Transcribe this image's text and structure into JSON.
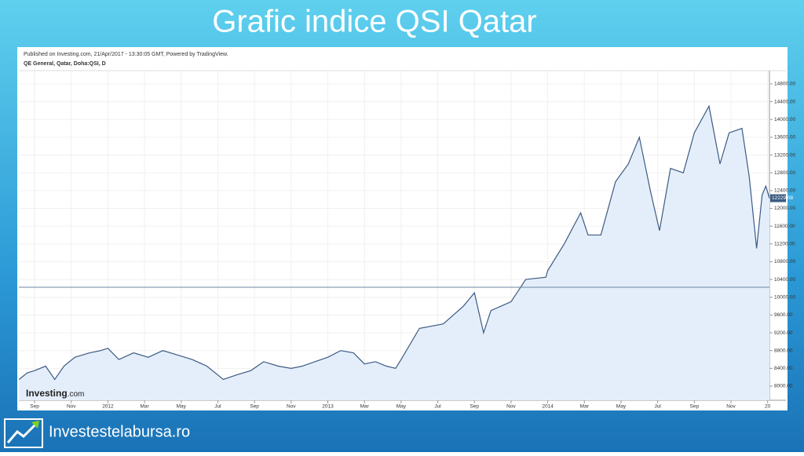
{
  "slide_title": "Grafic indice QSI Qatar",
  "footer": "Investestelabursa.ro",
  "chart_data": {
    "type": "area",
    "published": "Published on Investing.com, 21/Apr/2017 - 13:30:05 GMT, Powered by TradingView.",
    "title": "QE General, Qatar, Doha:QSI, D",
    "logo": "Investing",
    "logo_suffix": ".com",
    "color": "#3b5b82",
    "fill": "#e4eefa",
    "grid": true,
    "x": [
      -0.85,
      -0.4,
      0,
      0.6,
      1.1,
      1.6,
      2.2,
      3,
      3.6,
      4,
      4.6,
      5.4,
      6.2,
      7,
      7.8,
      8.6,
      9.4,
      10.3,
      11,
      11.8,
      12.5,
      13.3,
      14,
      14.6,
      15.3,
      16,
      16.7,
      17.4,
      18,
      18.6,
      19.2,
      19.7,
      20,
      21,
      22.3,
      23.4,
      24,
      24.5,
      24.9,
      26,
      26.8,
      27.9,
      28,
      28.9,
      29.8,
      30.2,
      30.9,
      31.7,
      32.4,
      33,
      33.6,
      34.1,
      34.7,
      35.4,
      36,
      36.8,
      37.4,
      37.9,
      38.6,
      39,
      39.4,
      39.7,
      39.9,
      40.1
    ],
    "values": [
      8150,
      8300,
      8350,
      8450,
      8150,
      8450,
      8650,
      8750,
      8800,
      8850,
      8600,
      8750,
      8650,
      8800,
      8700,
      8600,
      8450,
      8150,
      8250,
      8350,
      8550,
      8450,
      8400,
      8450,
      8550,
      8650,
      8800,
      8750,
      8500,
      8550,
      8450,
      8400,
      8600,
      9300,
      9400,
      9800,
      10100,
      9200,
      9700,
      9900,
      10400,
      10450,
      10600,
      11200,
      11900,
      11400,
      11400,
      12600,
      13000,
      13600,
      12400,
      11500,
      12900,
      12800,
      13700,
      14300,
      13000,
      13700,
      13800,
      12700,
      11100,
      12300,
      12500,
      12229.08
    ],
    "last_value": {
      "value": 12229.08,
      "label": "12229.08"
    },
    "reference_line": 10225,
    "xlim": [
      -0.86,
      40.1
    ],
    "xticks": [
      {
        "value": 0,
        "label": "Sep"
      },
      {
        "value": 2,
        "label": "Nov"
      },
      {
        "value": 4,
        "label": "2012"
      },
      {
        "value": 6,
        "label": "Mar"
      },
      {
        "value": 8,
        "label": "May"
      },
      {
        "value": 10,
        "label": "Jul"
      },
      {
        "value": 12,
        "label": "Sep"
      },
      {
        "value": 14,
        "label": "Nov"
      },
      {
        "value": 16,
        "label": "2013"
      },
      {
        "value": 18,
        "label": "Mar"
      },
      {
        "value": 20,
        "label": "May"
      },
      {
        "value": 22,
        "label": "Jul"
      },
      {
        "value": 24,
        "label": "Sep"
      },
      {
        "value": 26,
        "label": "Nov"
      },
      {
        "value": 28,
        "label": "2014"
      },
      {
        "value": 30,
        "label": "Mar"
      },
      {
        "value": 32,
        "label": "May"
      },
      {
        "value": 34,
        "label": "Jul"
      },
      {
        "value": 36,
        "label": "Sep"
      },
      {
        "value": 38,
        "label": "Nov"
      },
      {
        "value": 40,
        "label": "20"
      }
    ],
    "ylim": [
      7682,
      15099
    ],
    "yticks": [
      {
        "value": 8000,
        "label": "8000.00"
      },
      {
        "value": 8400,
        "label": "8400.00"
      },
      {
        "value": 8800,
        "label": "8800.00"
      },
      {
        "value": 9200,
        "label": "9200.00"
      },
      {
        "value": 9600,
        "label": "9600.00"
      },
      {
        "value": 10000,
        "label": "10000.00"
      },
      {
        "value": 10400,
        "label": "10400.00"
      },
      {
        "value": 10800,
        "label": "10800.00"
      },
      {
        "value": 11200,
        "label": "11200.00"
      },
      {
        "value": 11600,
        "label": "11600.00"
      },
      {
        "value": 12000,
        "label": "12000.00"
      },
      {
        "value": 12400,
        "label": "12400.00"
      },
      {
        "value": 12800,
        "label": "12800.00"
      },
      {
        "value": 13200,
        "label": "13200.00"
      },
      {
        "value": 13600,
        "label": "13600.00"
      },
      {
        "value": 14000,
        "label": "14000.00"
      },
      {
        "value": 14400,
        "label": "14400.00"
      },
      {
        "value": 14800,
        "label": "14800.00"
      }
    ]
  }
}
